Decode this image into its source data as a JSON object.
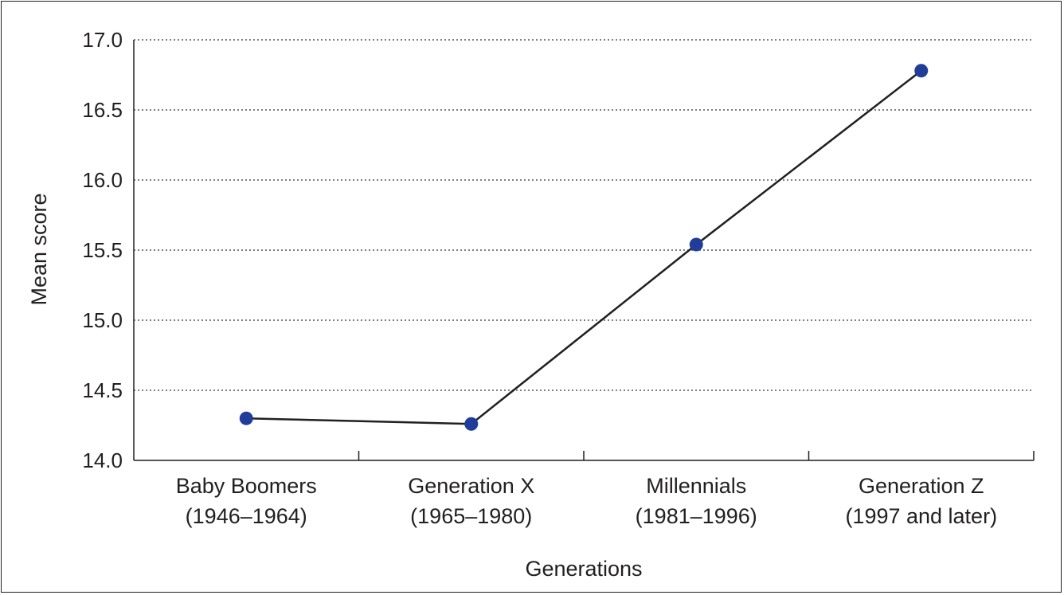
{
  "chart_data": {
    "type": "line",
    "title": "",
    "xlabel": "Generations",
    "ylabel": "Mean score",
    "ylim": [
      14.0,
      17.0
    ],
    "yticks": [
      "14.0",
      "14.5",
      "15.0",
      "15.5",
      "16.0",
      "16.5",
      "17.0"
    ],
    "categories": [
      [
        "Baby Boomers",
        "(1946–1964)"
      ],
      [
        "Generation X",
        "(1965–1980)"
      ],
      [
        "Millennials",
        "(1981–1996)"
      ],
      [
        "Generation Z",
        "(1997 and later)"
      ]
    ],
    "values": [
      14.3,
      14.26,
      15.54,
      16.78
    ],
    "grid": "horizontal-dotted",
    "colors": {
      "marker": "#1f3d99",
      "line": "#231f20",
      "grid": "#555555"
    }
  }
}
